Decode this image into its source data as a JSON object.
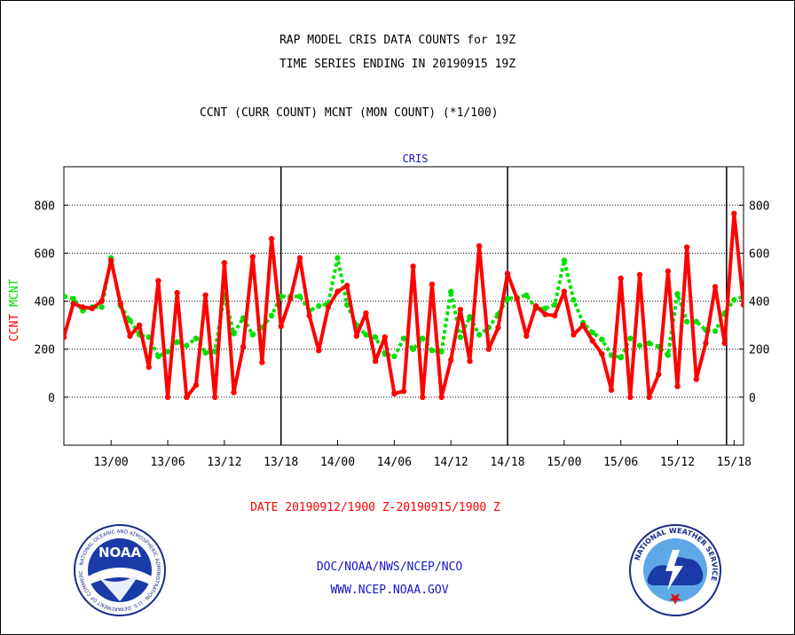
{
  "header": {
    "line1": "RAP MODEL CRIS DATA COUNTS for 19Z",
    "line2": "TIME SERIES ENDING IN 20190915 19Z",
    "line3": "CCNT (CURR COUNT) MCNT (MON COUNT) (*1/100)"
  },
  "panel_label": "CRIS",
  "date_range": "DATE 20190912/1900 Z-20190915/1900 Z",
  "footer": {
    "line1": "DOC/NOAA/NWS/NCEP/NCO",
    "line2": "WWW.NCEP.NOAA.GOV"
  },
  "logos": {
    "left": "NOAA",
    "left_ring": "NATIONAL OCEANIC AND ATMOSPHERIC ADMINISTRATION · U.S. DEPARTMENT OF COMMERCE",
    "right_ring": "NATIONAL WEATHER SERVICE"
  },
  "colors": {
    "ccnt": "#ff0000",
    "mcnt": "#00e000",
    "text_blue": "#1414c8",
    "grid": "#000000"
  },
  "chart_data": {
    "type": "line",
    "title": "CRIS",
    "ylabel_left": [
      "CCNT",
      "MCNT"
    ],
    "ylim": [
      -200,
      960
    ],
    "y_ticks": [
      0,
      200,
      400,
      600,
      800
    ],
    "x_unit": "hours since 2019-09-12 19Z",
    "xlim": [
      19,
      91
    ],
    "x_ticks": [
      {
        "x": 24,
        "label": "13/00"
      },
      {
        "x": 30,
        "label": "13/06"
      },
      {
        "x": 36,
        "label": "13/12"
      },
      {
        "x": 42,
        "label": "13/18"
      },
      {
        "x": 48,
        "label": "14/00"
      },
      {
        "x": 54,
        "label": "14/06"
      },
      {
        "x": 60,
        "label": "14/12"
      },
      {
        "x": 66,
        "label": "14/18"
      },
      {
        "x": 72,
        "label": "15/00"
      },
      {
        "x": 78,
        "label": "15/06"
      },
      {
        "x": 84,
        "label": "15/12"
      },
      {
        "x": 90,
        "label": "15/18"
      }
    ],
    "vlines": [
      42,
      66,
      89.2
    ],
    "series": [
      {
        "name": "CCNT",
        "color": "#ff0000",
        "style": "solid",
        "x": [
          19,
          20,
          21,
          22,
          23,
          24,
          25,
          26,
          27,
          28,
          29,
          30,
          31,
          32,
          33,
          34,
          35,
          36,
          37,
          38,
          39,
          40,
          41,
          42,
          43,
          44,
          45,
          46,
          47,
          48,
          49,
          50,
          51,
          52,
          53,
          54,
          55,
          56,
          57,
          58,
          59,
          60,
          61,
          62,
          63,
          64,
          65,
          66,
          67,
          68,
          69,
          70,
          71,
          72,
          73,
          74,
          75,
          76,
          77,
          78,
          79,
          80,
          81,
          82,
          83,
          84,
          85,
          86,
          87,
          88,
          89,
          90,
          91
        ],
        "values": [
          250,
          390,
          375,
          370,
          400,
          570,
          390,
          255,
          300,
          125,
          485,
          0,
          435,
          0,
          50,
          425,
          0,
          560,
          20,
          210,
          585,
          145,
          660,
          295,
          410,
          580,
          340,
          195,
          375,
          440,
          465,
          255,
          350,
          150,
          250,
          15,
          25,
          545,
          0,
          470,
          0,
          155,
          365,
          150,
          630,
          200,
          290,
          515,
          410,
          255,
          380,
          345,
          340,
          440,
          260,
          300,
          235,
          180,
          30,
          495,
          0,
          510,
          0,
          95,
          525,
          45,
          625,
          75,
          225,
          460,
          225,
          765,
          385
        ]
      },
      {
        "name": "MCNT",
        "color": "#00e000",
        "style": "dotted",
        "x": [
          19,
          20,
          21,
          22,
          23,
          24,
          25,
          26,
          27,
          28,
          29,
          30,
          31,
          32,
          33,
          34,
          35,
          36,
          37,
          38,
          39,
          40,
          41,
          42,
          43,
          44,
          45,
          46,
          47,
          48,
          49,
          50,
          51,
          52,
          53,
          54,
          55,
          56,
          57,
          58,
          59,
          60,
          61,
          62,
          63,
          64,
          65,
          66,
          67,
          68,
          69,
          70,
          71,
          72,
          73,
          74,
          75,
          76,
          77,
          78,
          79,
          80,
          81,
          82,
          83,
          84,
          85,
          86,
          87,
          88,
          89,
          90,
          91
        ],
        "values": [
          420,
          410,
          360,
          375,
          375,
          580,
          380,
          320,
          260,
          250,
          170,
          190,
          230,
          215,
          245,
          185,
          190,
          425,
          265,
          330,
          260,
          290,
          340,
          420,
          420,
          420,
          360,
          380,
          390,
          580,
          385,
          300,
          260,
          250,
          180,
          170,
          245,
          200,
          245,
          195,
          190,
          440,
          250,
          335,
          260,
          290,
          345,
          410,
          415,
          425,
          370,
          370,
          385,
          570,
          405,
          310,
          270,
          240,
          175,
          165,
          245,
          215,
          225,
          210,
          175,
          430,
          315,
          315,
          280,
          275,
          350,
          405,
          420
        ]
      }
    ]
  }
}
